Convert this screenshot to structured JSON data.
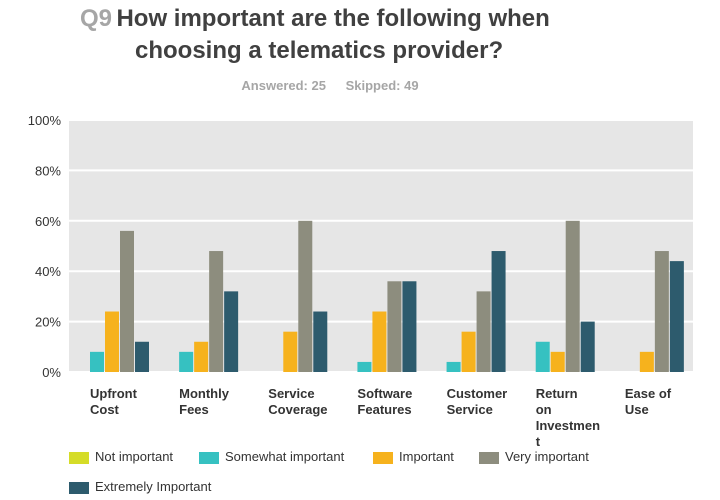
{
  "header": {
    "question_number": "Q9",
    "question_line1": "How important are the following when",
    "question_line2": "choosing a telematics provider?",
    "answered": "Answered: 25",
    "skipped": "Skipped: 49"
  },
  "colors": {
    "plot_background": "#e6e6e6",
    "gridline": "#ffffff",
    "not_important": "#d5dc28",
    "somewhat_important": "#36c1c1",
    "important": "#f6b21d",
    "very_important": "#8d8d7e",
    "extremely_important": "#2d5b6d"
  },
  "chart_data": {
    "type": "bar",
    "categories": [
      [
        "Upfront",
        "Cost"
      ],
      [
        "Monthly",
        "Fees"
      ],
      [
        "Service",
        "Coverage"
      ],
      [
        "Software",
        "Features"
      ],
      [
        "Customer",
        "Service"
      ],
      [
        "Return",
        "on",
        "Investmen",
        "t"
      ],
      [
        "Ease of",
        "Use"
      ]
    ],
    "series": [
      {
        "name": "Not important",
        "color": "#d5dc28",
        "values": [
          0,
          0,
          0,
          0,
          0,
          0,
          0
        ]
      },
      {
        "name": "Somewhat important",
        "color": "#36c1c1",
        "values": [
          8,
          8,
          0,
          4,
          4,
          12,
          0
        ]
      },
      {
        "name": "Important",
        "color": "#f6b21d",
        "values": [
          24,
          12,
          16,
          24,
          16,
          8,
          8
        ]
      },
      {
        "name": "Very important",
        "color": "#8d8d7e",
        "values": [
          56,
          48,
          60,
          36,
          32,
          60,
          48
        ]
      },
      {
        "name": "Extremely Important",
        "color": "#2d5b6d",
        "values": [
          12,
          32,
          24,
          36,
          48,
          20,
          44
        ]
      }
    ],
    "ylim": [
      0,
      100
    ],
    "yticks": [
      "0%",
      "20%",
      "40%",
      "60%",
      "80%",
      "100%"
    ],
    "ytick_values": [
      0,
      20,
      40,
      60,
      80,
      100
    ],
    "unit": "%",
    "grid": true,
    "legend_position": "bottom"
  }
}
